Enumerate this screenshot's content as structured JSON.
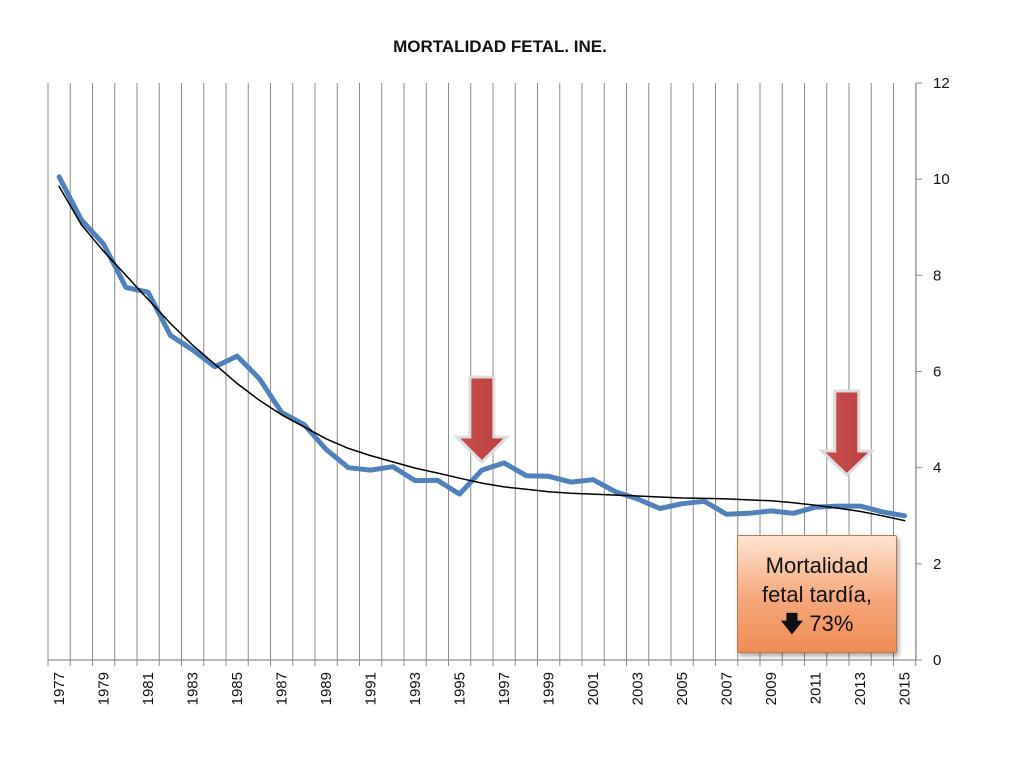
{
  "chart_data": {
    "type": "line",
    "title": "MORTALIDAD FETAL. INE.",
    "xlabel": "",
    "ylabel": "",
    "x": [
      1977,
      1978,
      1979,
      1980,
      1981,
      1982,
      1983,
      1984,
      1985,
      1986,
      1987,
      1988,
      1989,
      1990,
      1991,
      1992,
      1993,
      1994,
      1995,
      1996,
      1997,
      1998,
      1999,
      2000,
      2001,
      2002,
      2003,
      2004,
      2005,
      2006,
      2007,
      2008,
      2009,
      2010,
      2011,
      2012,
      2013,
      2014,
      2015
    ],
    "x_tick_labels": [
      "1977",
      "1979",
      "1981",
      "1983",
      "1985",
      "1987",
      "1989",
      "1991",
      "1993",
      "1995",
      "1997",
      "1999",
      "2001",
      "2003",
      "2005",
      "2007",
      "2009",
      "2011",
      "2013",
      "2015"
    ],
    "y_tick_labels": [
      "0",
      "2",
      "4",
      "6",
      "8",
      "10",
      "12"
    ],
    "ylim": [
      0,
      12
    ],
    "y_axis_side": "right",
    "grid": "vertical",
    "legend": "none",
    "series": [
      {
        "values": [
          10.05,
          9.15,
          8.65,
          7.75,
          7.65,
          6.75,
          6.45,
          6.1,
          6.32,
          5.85,
          5.15,
          4.9,
          4.38,
          4.0,
          3.95,
          4.02,
          3.73,
          3.74,
          3.45,
          3.95,
          4.1,
          3.83,
          3.82,
          3.7,
          3.75,
          3.5,
          3.35,
          3.15,
          3.25,
          3.3,
          3.03,
          3.05,
          3.1,
          3.05,
          3.18,
          3.2,
          3.2,
          3.08,
          3.0
        ],
        "color": "#4f81bd"
      },
      {
        "values": [
          9.85,
          9.05,
          8.5,
          8.0,
          7.5,
          7.0,
          6.55,
          6.15,
          5.75,
          5.4,
          5.1,
          4.85,
          4.6,
          4.4,
          4.25,
          4.12,
          3.99,
          3.89,
          3.78,
          3.68,
          3.6,
          3.55,
          3.5,
          3.47,
          3.45,
          3.43,
          3.41,
          3.39,
          3.37,
          3.36,
          3.35,
          3.33,
          3.31,
          3.27,
          3.22,
          3.16,
          3.09,
          3.0,
          2.9
        ],
        "color": "#000000"
      }
    ],
    "markers": [
      {
        "type": "arrow",
        "year": 1996,
        "color": "#c0504d"
      },
      {
        "type": "arrow",
        "year": 2012.4,
        "color": "#c0504d"
      }
    ]
  },
  "callout": {
    "line1": "Mortalidad",
    "line2": "fetal tardía,",
    "line3": "73%",
    "arrow_glyph": "🡇"
  }
}
